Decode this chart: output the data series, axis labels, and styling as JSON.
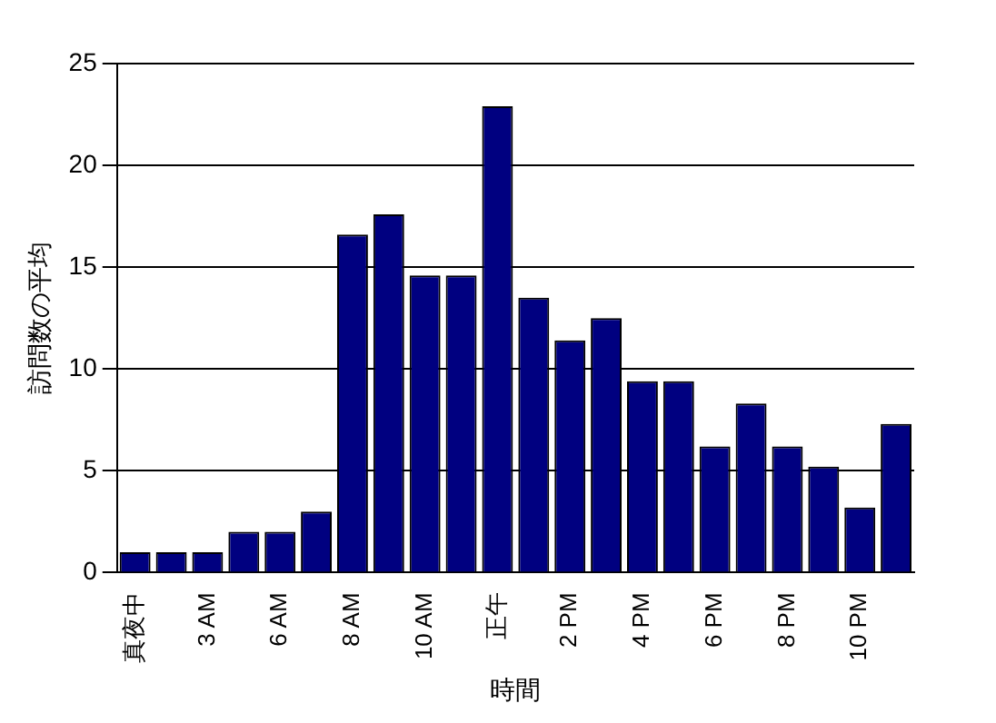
{
  "chart_data": {
    "type": "bar",
    "xlabel": "時間",
    "ylabel": "訪問数の平均",
    "categories": [
      "真夜中",
      null,
      "3 AM",
      null,
      "6 AM",
      null,
      "8 AM",
      null,
      "10 AM",
      null,
      "正午",
      null,
      "2 PM",
      null,
      "4 PM",
      null,
      "6 PM",
      null,
      "8 PM",
      null,
      "10 PM",
      null
    ],
    "values": [
      1,
      1,
      1,
      2,
      2,
      3,
      16.6,
      17.6,
      14.6,
      14.6,
      22.9,
      13.5,
      11.4,
      12.5,
      9.4,
      9.4,
      6.2,
      8.3,
      6.2,
      5.2,
      3.2,
      7.3
    ],
    "color": "#000080",
    "ylim": [
      0,
      25
    ],
    "yticks": [
      0,
      5,
      10,
      15,
      20,
      25
    ],
    "grid": "y",
    "legend": false
  }
}
